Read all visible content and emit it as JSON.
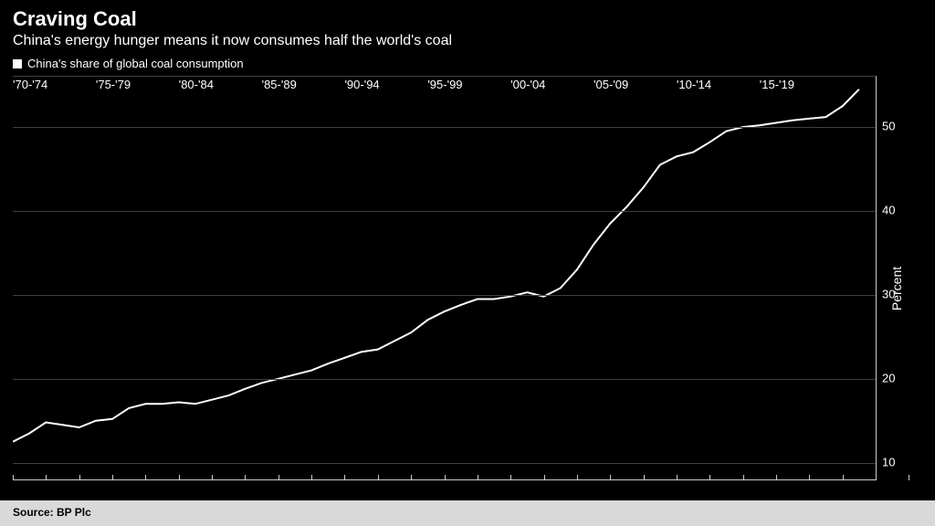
{
  "header": {
    "title": "Craving Coal",
    "subtitle": "China's energy hunger means it now consumes half the world's coal"
  },
  "legend": {
    "series_label": "China's share of global coal consumption",
    "marker_color": "#ffffff"
  },
  "chart": {
    "type": "line",
    "background_color": "#000000",
    "grid_color": "#404040",
    "axis_color": "#cccccc",
    "line_color": "#ffffff",
    "line_width": 2,
    "y_axis": {
      "title": "Percent",
      "min": 8,
      "max": 56,
      "ticks": [
        10,
        20,
        30,
        40,
        50
      ],
      "tick_fontsize": 13,
      "title_fontsize": 14
    },
    "x_axis": {
      "min": 1970,
      "max": 2022,
      "group_labels": [
        "'70-'74",
        "'75-'79",
        "'80-'84",
        "'85-'89",
        "'90-'94",
        "'95-'99",
        "'00-'04",
        "'05-'09",
        "'10-'14",
        "'15-'19"
      ],
      "group_starts": [
        1970,
        1975,
        1980,
        1985,
        1990,
        1995,
        2000,
        2005,
        2010,
        2015
      ],
      "tick_fontsize": 13
    },
    "series": {
      "years": [
        1970,
        1971,
        1972,
        1973,
        1974,
        1975,
        1976,
        1977,
        1978,
        1979,
        1980,
        1981,
        1982,
        1983,
        1984,
        1985,
        1986,
        1987,
        1988,
        1989,
        1990,
        1991,
        1992,
        1993,
        1994,
        1995,
        1996,
        1997,
        1998,
        1999,
        2000,
        2001,
        2002,
        2003,
        2004,
        2005,
        2006,
        2007,
        2008,
        2009,
        2010,
        2011,
        2012,
        2013,
        2014,
        2015,
        2016,
        2017,
        2018,
        2019,
        2020,
        2021
      ],
      "values": [
        12.5,
        13.5,
        14.8,
        14.5,
        14.2,
        15.0,
        15.2,
        16.5,
        17.0,
        17.0,
        17.2,
        17.0,
        17.5,
        18.0,
        18.8,
        19.5,
        20.0,
        20.5,
        21.0,
        21.8,
        22.5,
        23.2,
        23.5,
        24.5,
        25.5,
        27.0,
        28.0,
        28.8,
        29.5,
        29.5,
        29.8,
        30.3,
        29.8,
        30.8,
        33.0,
        36.0,
        38.5,
        40.5,
        42.8,
        45.5,
        46.5,
        47.0,
        48.2,
        49.5,
        50.0,
        50.2,
        50.5,
        50.8,
        51.0,
        51.2,
        52.5,
        54.5
      ]
    }
  },
  "source": {
    "label": "Source: BP Plc"
  },
  "colors": {
    "bg": "#000000",
    "text": "#ffffff",
    "source_bg": "#d9d9d9",
    "source_text": "#000000"
  }
}
